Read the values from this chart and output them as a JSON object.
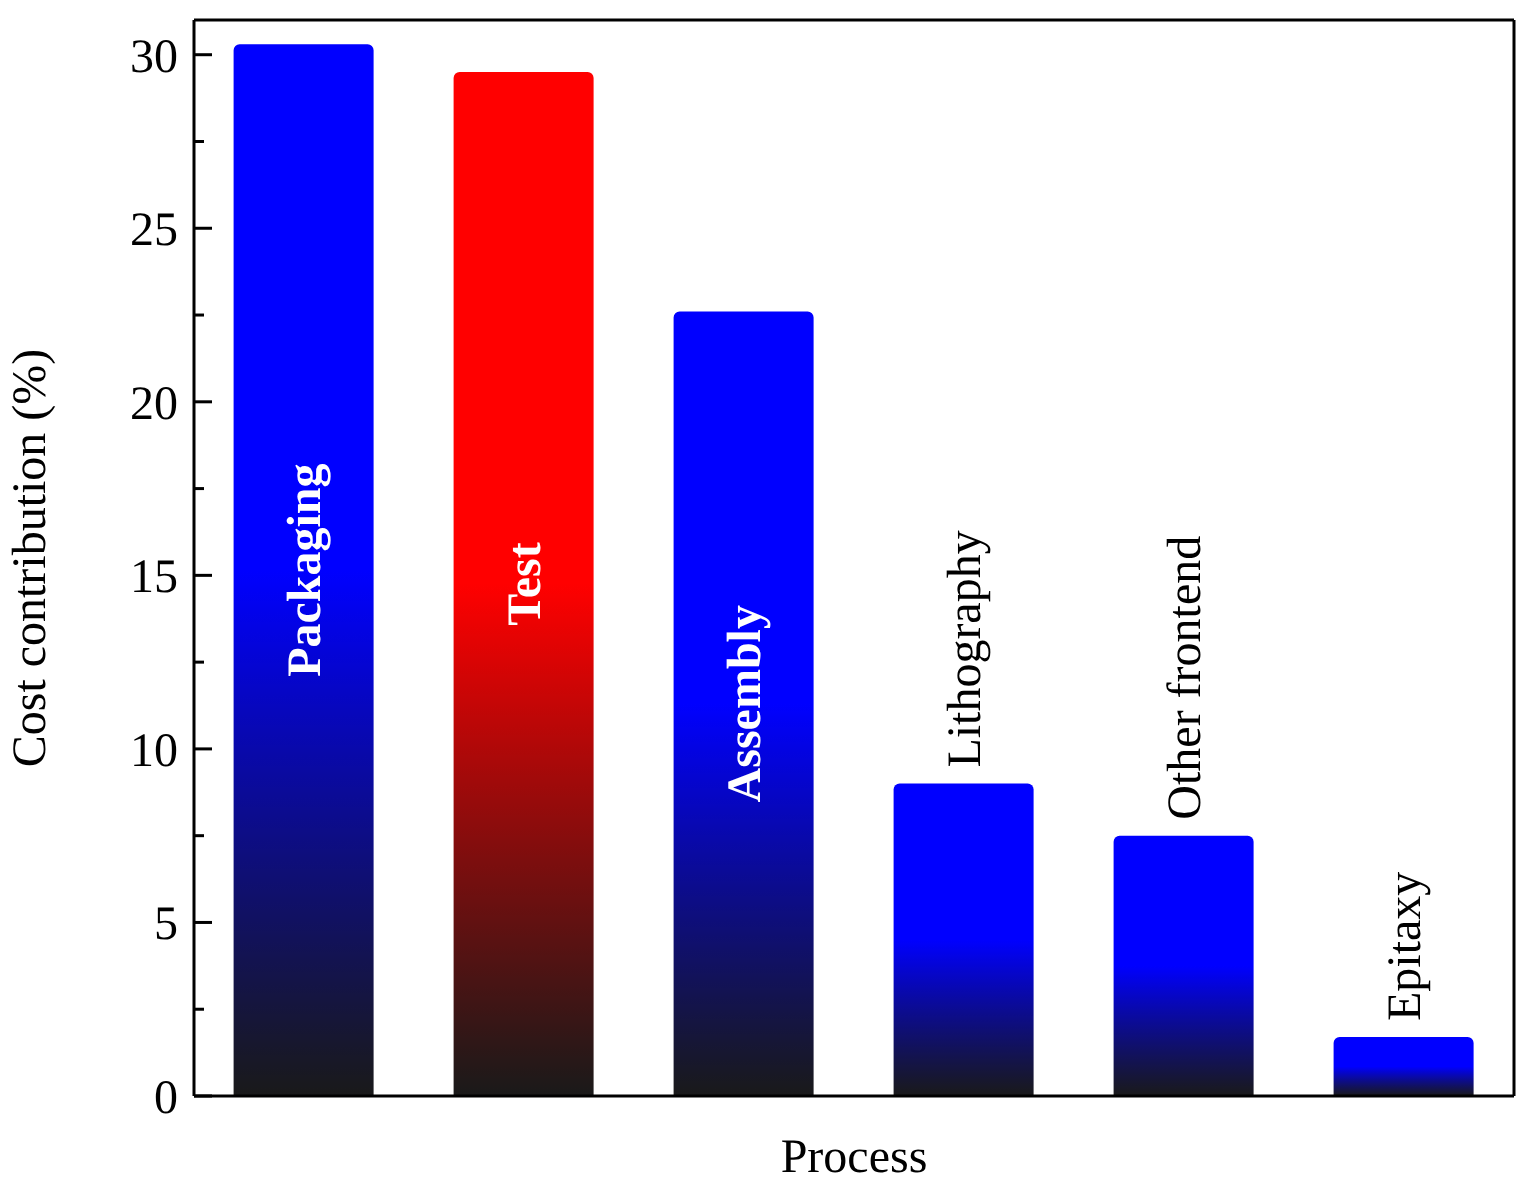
{
  "chart_data": {
    "type": "bar",
    "xlabel": "Process",
    "ylabel": "Cost contribution (%)",
    "categories": [
      "Packaging",
      "Test",
      "Assembly",
      "Lithography",
      "Other frontend",
      "Epitaxy"
    ],
    "values": [
      30.3,
      29.5,
      22.6,
      9.0,
      7.5,
      1.7
    ],
    "colors": [
      "#0000ff",
      "#ff0000",
      "#0000ff",
      "#0000ff",
      "#0000ff",
      "#0000ff"
    ],
    "ylim": [
      0,
      31
    ],
    "yticks": [
      0,
      {
        "value": 2.5,
        "label": null
      },
      5,
      {
        "value": 7.5,
        "label": null
      },
      10,
      {
        "value": 12.5,
        "label": null
      },
      15,
      {
        "value": 17.5,
        "label": null
      },
      20,
      {
        "value": 22.5,
        "label": null
      },
      25,
      {
        "value": 27.5,
        "label": null
      },
      30
    ],
    "grid": false,
    "legend": false
  }
}
